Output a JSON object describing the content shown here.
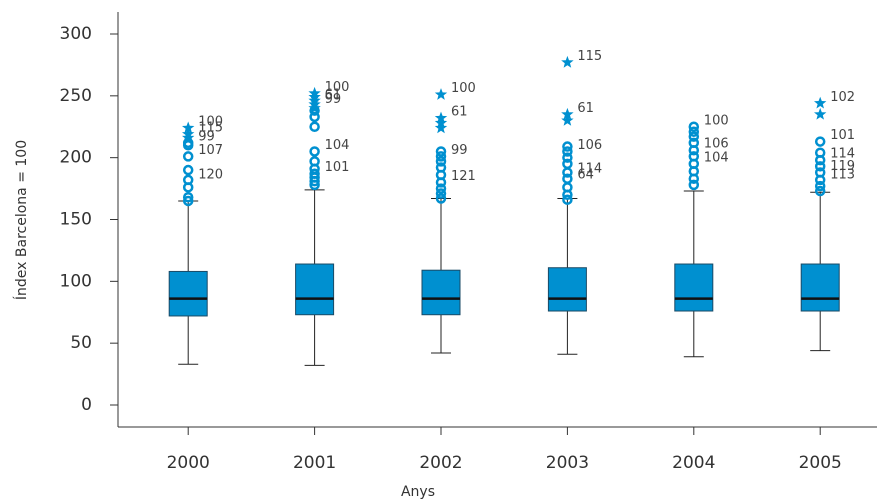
{
  "chart_data": {
    "type": "box",
    "xlabel": "Anys",
    "ylabel": "Índex Barcelona = 100",
    "categories": [
      "2000",
      "2001",
      "2002",
      "2003",
      "2004",
      "2005"
    ],
    "color": "#0090d0",
    "ylim": [
      0,
      300
    ],
    "yticks": [
      0,
      50,
      100,
      150,
      200,
      250,
      300
    ],
    "boxes": [
      {
        "whislo": 33,
        "q1": 72,
        "med": 86,
        "q3": 108,
        "whishi": 165,
        "fliers": [
          165,
          168,
          176,
          182,
          190,
          201,
          210,
          212
        ],
        "extremes": [
          216,
          219,
          224
        ],
        "annotations": [
          {
            "label": "100",
            "value": 224
          },
          {
            "label": "115",
            "value": 219
          },
          {
            "label": "99",
            "value": 212
          },
          {
            "label": "107",
            "value": 201
          },
          {
            "label": "120",
            "value": 181
          }
        ]
      },
      {
        "whislo": 32,
        "q1": 73,
        "med": 86,
        "q3": 114,
        "whishi": 174,
        "fliers": [
          178,
          181,
          184,
          187,
          191,
          197,
          205,
          225,
          233,
          238
        ],
        "extremes": [
          240,
          243,
          246,
          249,
          252
        ],
        "annotations": [
          {
            "label": "100",
            "value": 252
          },
          {
            "label": "61",
            "value": 246
          },
          {
            "label": "99",
            "value": 242
          },
          {
            "label": "104",
            "value": 205
          },
          {
            "label": "101",
            "value": 187
          }
        ]
      },
      {
        "whislo": 42,
        "q1": 73,
        "med": 86,
        "q3": 109,
        "whishi": 167,
        "fliers": [
          167,
          171,
          175,
          180,
          186,
          192,
          197,
          201,
          205
        ],
        "extremes": [
          224,
          228,
          232,
          251
        ],
        "annotations": [
          {
            "label": "100",
            "value": 251
          },
          {
            "label": "61",
            "value": 232
          },
          {
            "label": "99",
            "value": 201
          },
          {
            "label": "121",
            "value": 180
          }
        ]
      },
      {
        "whislo": 41,
        "q1": 76,
        "med": 86,
        "q3": 111,
        "whishi": 167,
        "fliers": [
          166,
          170,
          176,
          183,
          188,
          195,
          200,
          205,
          209
        ],
        "extremes": [
          230,
          235,
          277
        ],
        "annotations": [
          {
            "label": "115",
            "value": 277
          },
          {
            "label": "61",
            "value": 235
          },
          {
            "label": "106",
            "value": 205
          },
          {
            "label": "114",
            "value": 186
          },
          {
            "label": "64",
            "value": 181
          }
        ]
      },
      {
        "whislo": 39,
        "q1": 76,
        "med": 86,
        "q3": 114,
        "whishi": 173,
        "fliers": [
          178,
          183,
          189,
          195,
          201,
          206,
          212,
          217,
          221,
          225
        ],
        "extremes": [],
        "annotations": [
          {
            "label": "100",
            "value": 225
          },
          {
            "label": "106",
            "value": 206
          },
          {
            "label": "104",
            "value": 195
          }
        ]
      },
      {
        "whislo": 44,
        "q1": 76,
        "med": 86,
        "q3": 114,
        "whishi": 172,
        "fliers": [
          173,
          177,
          182,
          188,
          193,
          198,
          204,
          213
        ],
        "extremes": [
          235,
          244
        ],
        "annotations": [
          {
            "label": "102",
            "value": 244
          },
          {
            "label": "101",
            "value": 213
          },
          {
            "label": "114",
            "value": 198
          },
          {
            "label": "119",
            "value": 188
          },
          {
            "label": "113",
            "value": 181
          }
        ]
      }
    ]
  }
}
